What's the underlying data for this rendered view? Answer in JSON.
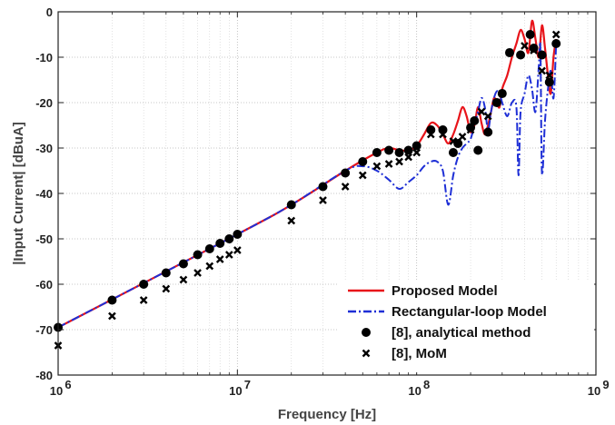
{
  "chart_data": {
    "type": "line",
    "xlabel": "Frequency [Hz]",
    "ylabel": "|Input Current| [dBuA]",
    "xscale": "log",
    "xlim": [
      1000000,
      1000000000
    ],
    "ylim": [
      -80,
      0
    ],
    "x_ticks": [
      1000000,
      10000000,
      100000000,
      1000000000
    ],
    "x_tick_labels": [
      {
        "base": "10",
        "exp": "6"
      },
      {
        "base": "10",
        "exp": "7"
      },
      {
        "base": "10",
        "exp": "8"
      },
      {
        "base": "10",
        "exp": "9"
      }
    ],
    "y_ticks": [
      0,
      -10,
      -20,
      -30,
      -40,
      -50,
      -60,
      -70,
      -80
    ],
    "y_tick_labels": [
      "0",
      "-10",
      "-20",
      "-30",
      "-40",
      "-50",
      "-60",
      "-70",
      "-80"
    ],
    "grid": true,
    "legend_position": "bottom-right",
    "series": [
      {
        "name": "Proposed Model",
        "style": "solid-line",
        "color": "#e8141a",
        "x": [
          1000000,
          10000000,
          20000000,
          40000000,
          60000000,
          70000000,
          80000000,
          90000000,
          100000000,
          110000000,
          120000000,
          130000000,
          140000000,
          150000000,
          160000000,
          170000000,
          180000000,
          190000000,
          200000000,
          210000000,
          220000000,
          230000000,
          240000000,
          250000000,
          260000000,
          270000000,
          280000000,
          290000000,
          300000000,
          320000000,
          340000000,
          360000000,
          380000000,
          400000000,
          420000000,
          440000000,
          460000000,
          480000000,
          500000000,
          520000000,
          540000000,
          560000000,
          580000000,
          600000000
        ],
        "y": [
          -69.5,
          -49,
          -42.5,
          -35,
          -31,
          -30,
          -30.5,
          -30.5,
          -29.5,
          -27,
          -24.5,
          -25,
          -27,
          -29,
          -27,
          -24,
          -21,
          -23,
          -26.5,
          -25,
          -21,
          -24.5,
          -27,
          -25,
          -22,
          -19,
          -20,
          -21,
          -17,
          -14,
          -10,
          -7,
          -4,
          -6,
          -9,
          -2,
          -6,
          -10,
          -3,
          -8,
          -14,
          -18,
          -10,
          -6
        ],
        "y_min": -80
      },
      {
        "name": "Rectangular-loop Model",
        "style": "dash-dot-line",
        "color": "#1e2fd6",
        "x": [
          1000000,
          10000000,
          20000000,
          40000000,
          50000000,
          60000000,
          70000000,
          80000000,
          90000000,
          100000000,
          110000000,
          120000000,
          130000000,
          140000000,
          150000000,
          160000000,
          170000000,
          180000000,
          190000000,
          200000000,
          210000000,
          220000000,
          230000000,
          240000000,
          250000000,
          260000000,
          270000000,
          280000000,
          290000000,
          300000000,
          320000000,
          340000000,
          360000000,
          370000000,
          380000000,
          400000000,
          420000000,
          440000000,
          460000000,
          480000000,
          490000000,
          500000000,
          520000000,
          540000000,
          560000000,
          580000000,
          600000000
        ],
        "y": [
          -69.5,
          -49,
          -42.5,
          -35,
          -34,
          -35,
          -37,
          -39,
          -37.5,
          -36,
          -34,
          -33,
          -33,
          -35,
          -42.5,
          -36,
          -32,
          -30,
          -29,
          -28,
          -25,
          -22,
          -19,
          -21,
          -26,
          -22,
          -19,
          -17.5,
          -18,
          -20,
          -23,
          -20,
          -21,
          -36,
          -22,
          -18,
          -14,
          -17,
          -22,
          -12,
          -8,
          -35.5,
          -24,
          -17,
          -13,
          -19,
          -7
        ]
      },
      {
        "name": "[8], analytical method",
        "style": "filled-circle-markers",
        "color": "#000000",
        "x": [
          1000000,
          2000000,
          3000000,
          4000000,
          5000000,
          6000000,
          7000000,
          8000000,
          9000000,
          10000000,
          20000000,
          30000000,
          40000000,
          50000000,
          60000000,
          70000000,
          80000000,
          90000000,
          100000000,
          120000000,
          140000000,
          160000000,
          170000000,
          200000000,
          210000000,
          220000000,
          250000000,
          280000000,
          300000000,
          330000000,
          380000000,
          430000000,
          450000000,
          500000000,
          550000000,
          600000000
        ],
        "y": [
          -69.5,
          -63.5,
          -60,
          -57.5,
          -55.5,
          -53.5,
          -52.2,
          -51,
          -50,
          -49,
          -42.5,
          -38.5,
          -35.5,
          -33,
          -31,
          -30.5,
          -31,
          -30.5,
          -29.5,
          -26,
          -26,
          -31,
          -29,
          -25.5,
          -24,
          -30.5,
          -26.5,
          -20,
          -18,
          -9,
          -9.5,
          -5,
          -8,
          -9.5,
          -15.5,
          -7
        ]
      },
      {
        "name": "[8], MoM",
        "style": "x-markers",
        "color": "#000000",
        "x": [
          1000000,
          2000000,
          3000000,
          4000000,
          5000000,
          6000000,
          7000000,
          8000000,
          9000000,
          10000000,
          20000000,
          30000000,
          40000000,
          50000000,
          60000000,
          70000000,
          80000000,
          90000000,
          100000000,
          120000000,
          140000000,
          160000000,
          180000000,
          200000000,
          230000000,
          250000000,
          280000000,
          300000000,
          330000000,
          400000000,
          450000000,
          500000000,
          550000000,
          600000000
        ],
        "y": [
          -73.5,
          -67,
          -63.5,
          -61,
          -59,
          -57.5,
          -56,
          -54.5,
          -53.5,
          -52.5,
          -46,
          -41.5,
          -38.5,
          -36,
          -34,
          -33.5,
          -33,
          -32,
          -31,
          -27,
          -27,
          -28.5,
          -27.5,
          -26,
          -22,
          -23,
          -20,
          -18,
          -9,
          -7.5,
          -8.5,
          -13,
          -14,
          -5
        ]
      }
    ]
  }
}
